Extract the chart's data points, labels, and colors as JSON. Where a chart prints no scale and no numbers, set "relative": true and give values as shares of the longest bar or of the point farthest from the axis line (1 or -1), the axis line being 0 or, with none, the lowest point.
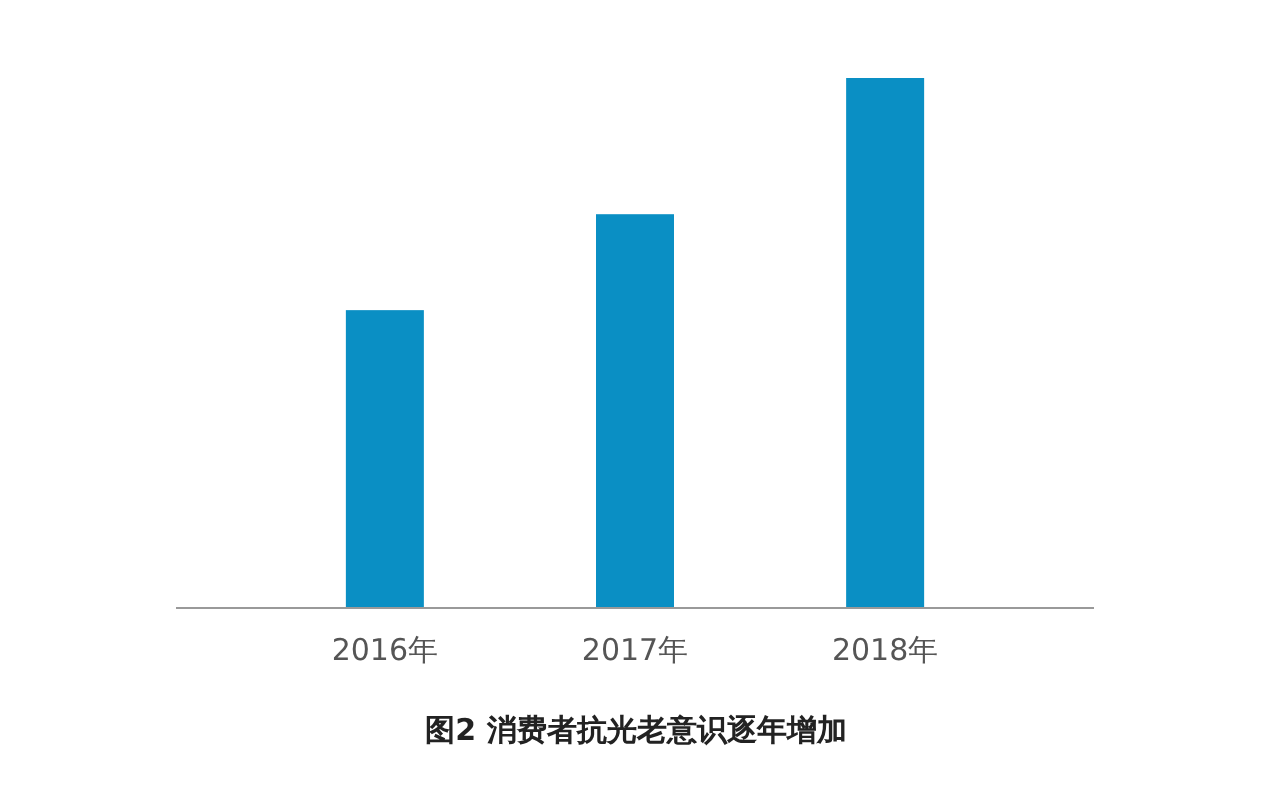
{
  "chart_data": {
    "type": "bar",
    "title": "图2 消费者抗光老意识逐年增加",
    "categories": [
      "2016年",
      "2017年",
      "2018年"
    ],
    "values": [
      0.562,
      0.743,
      1
    ],
    "color": "#0a8fc4",
    "relative": true
  }
}
